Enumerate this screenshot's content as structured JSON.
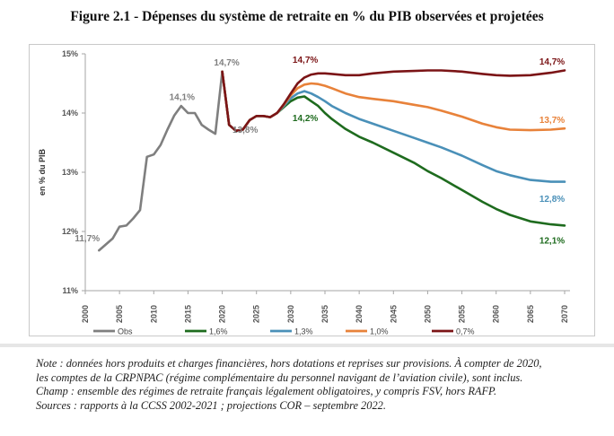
{
  "title": "Figure 2.1 - Dépenses du système de retraite en % du PIB observées et projetées",
  "chart_data": {
    "type": "line",
    "title": "Figure 2.1 - Dépenses du système de retraite en % du PIB observées et projetées",
    "xlabel": "",
    "ylabel": "en % du PIB",
    "xlim": [
      2000,
      2070
    ],
    "ylim": [
      11,
      15
    ],
    "x_ticks": [
      2000,
      2005,
      2010,
      2015,
      2020,
      2025,
      2030,
      2035,
      2040,
      2045,
      2050,
      2055,
      2060,
      2065,
      2070
    ],
    "x_tick_labels": [
      "2000",
      "2005",
      "2010",
      "2015",
      "2020",
      "2025",
      "2030",
      "2035",
      "2040",
      "2045",
      "2050",
      "2055",
      "2060",
      "2065",
      "2070"
    ],
    "y_ticks": [
      11,
      12,
      13,
      14,
      15
    ],
    "y_tick_labels": [
      "11%",
      "12%",
      "13%",
      "14%",
      "15%"
    ],
    "grid": false,
    "legend_position": "bottom",
    "series": [
      {
        "name": "Obs",
        "color": "#7f7f7f",
        "x": [
          2002,
          2003,
          2004,
          2005,
          2006,
          2007,
          2008,
          2009,
          2010,
          2011,
          2012,
          2013,
          2014,
          2015,
          2016,
          2017,
          2018,
          2019,
          2020
        ],
        "values": [
          11.68,
          11.78,
          11.88,
          12.08,
          12.1,
          12.22,
          12.36,
          13.26,
          13.3,
          13.46,
          13.72,
          13.96,
          14.12,
          14.0,
          14.0,
          13.8,
          13.72,
          13.65,
          14.7
        ]
      },
      {
        "name": "1,6%",
        "color": "#1e6b1e",
        "x": [
          2020,
          2021,
          2022,
          2023,
          2024,
          2025,
          2026,
          2027,
          2028,
          2029,
          2030,
          2031,
          2032,
          2033,
          2034,
          2035,
          2036,
          2038,
          2040,
          2042,
          2045,
          2048,
          2050,
          2052,
          2055,
          2058,
          2060,
          2062,
          2065,
          2068,
          2070
        ],
        "values": [
          14.7,
          13.8,
          13.7,
          13.72,
          13.88,
          13.95,
          13.95,
          13.93,
          14.0,
          14.1,
          14.2,
          14.26,
          14.28,
          14.2,
          14.12,
          14.0,
          13.9,
          13.73,
          13.6,
          13.5,
          13.33,
          13.16,
          13.02,
          12.9,
          12.7,
          12.5,
          12.38,
          12.28,
          12.17,
          12.12,
          12.1
        ]
      },
      {
        "name": "1,3%",
        "color": "#4a90b8",
        "x": [
          2020,
          2021,
          2022,
          2023,
          2024,
          2025,
          2026,
          2027,
          2028,
          2029,
          2030,
          2031,
          2032,
          2033,
          2034,
          2035,
          2036,
          2038,
          2040,
          2042,
          2045,
          2048,
          2050,
          2052,
          2055,
          2058,
          2060,
          2062,
          2065,
          2068,
          2070
        ],
        "values": [
          14.7,
          13.8,
          13.7,
          13.72,
          13.88,
          13.95,
          13.95,
          13.93,
          14.0,
          14.12,
          14.25,
          14.33,
          14.37,
          14.33,
          14.27,
          14.2,
          14.12,
          14.0,
          13.9,
          13.82,
          13.7,
          13.58,
          13.5,
          13.42,
          13.28,
          13.12,
          13.02,
          12.95,
          12.87,
          12.84,
          12.84
        ]
      },
      {
        "name": "1,0%",
        "color": "#e8823a",
        "x": [
          2020,
          2021,
          2022,
          2023,
          2024,
          2025,
          2026,
          2027,
          2028,
          2029,
          2030,
          2031,
          2032,
          2033,
          2034,
          2035,
          2036,
          2038,
          2040,
          2042,
          2045,
          2048,
          2050,
          2052,
          2055,
          2058,
          2060,
          2062,
          2065,
          2068,
          2070
        ],
        "values": [
          14.7,
          13.8,
          13.7,
          13.72,
          13.88,
          13.95,
          13.95,
          13.93,
          14.0,
          14.14,
          14.3,
          14.42,
          14.48,
          14.5,
          14.49,
          14.46,
          14.42,
          14.33,
          14.27,
          14.24,
          14.2,
          14.14,
          14.1,
          14.04,
          13.94,
          13.82,
          13.76,
          13.72,
          13.71,
          13.72,
          13.74
        ]
      },
      {
        "name": "0,7%",
        "color": "#7b1416",
        "x": [
          2020,
          2021,
          2022,
          2023,
          2024,
          2025,
          2026,
          2027,
          2028,
          2029,
          2030,
          2031,
          2032,
          2033,
          2034,
          2035,
          2036,
          2038,
          2040,
          2042,
          2045,
          2048,
          2050,
          2052,
          2055,
          2058,
          2060,
          2062,
          2065,
          2068,
          2070
        ],
        "values": [
          14.7,
          13.8,
          13.7,
          13.72,
          13.88,
          13.95,
          13.95,
          13.93,
          14.0,
          14.15,
          14.33,
          14.5,
          14.6,
          14.65,
          14.67,
          14.67,
          14.66,
          14.64,
          14.64,
          14.67,
          14.7,
          14.71,
          14.72,
          14.72,
          14.7,
          14.66,
          14.64,
          14.63,
          14.64,
          14.68,
          14.72
        ]
      }
    ],
    "annotations": [
      {
        "text": "11,7%",
        "series": "Obs",
        "x": 2002,
        "y": 11.7,
        "color": "#7f7f7f"
      },
      {
        "text": "14,1%",
        "series": "Obs",
        "x": 2014,
        "y": 14.1,
        "color": "#7f7f7f"
      },
      {
        "text": "14,7%",
        "series": "Obs",
        "x": 2020,
        "y": 14.7,
        "color": "#7f7f7f"
      },
      {
        "text": "13,8%",
        "series": "Obs",
        "x": 2021,
        "y": 13.8,
        "color": "#7f7f7f"
      },
      {
        "text": "14,7%",
        "series": "0,7%",
        "x": 2032,
        "y": 14.7,
        "color": "#7b1416"
      },
      {
        "text": "14,2%",
        "series": "1,6%",
        "x": 2032,
        "y": 14.2,
        "color": "#1e6b1e"
      },
      {
        "text": "14,7%",
        "series": "0,7%",
        "x": 2070,
        "y": 14.7,
        "color": "#7b1416"
      },
      {
        "text": "13,7%",
        "series": "1,0%",
        "x": 2070,
        "y": 13.7,
        "color": "#e8823a"
      },
      {
        "text": "12,8%",
        "series": "1,3%",
        "x": 2070,
        "y": 12.8,
        "color": "#4a90b8"
      },
      {
        "text": "12,1%",
        "series": "1,6%",
        "x": 2070,
        "y": 12.1,
        "color": "#1e6b1e"
      }
    ]
  },
  "notes": [
    "Note : données hors produits et charges financières, hors dotations et reprises sur provisions. À compter de 2020,",
    "les comptes de la CRPNPAC (régime complémentaire du personnel navigant de l’aviation civile), sont inclus.",
    "Champ : ensemble des régimes de retraite français légalement obligatoires, y compris FSV, hors RAFP.",
    "Sources : rapports à la CCSS 2002-2021 ; projections COR – septembre 2022."
  ]
}
